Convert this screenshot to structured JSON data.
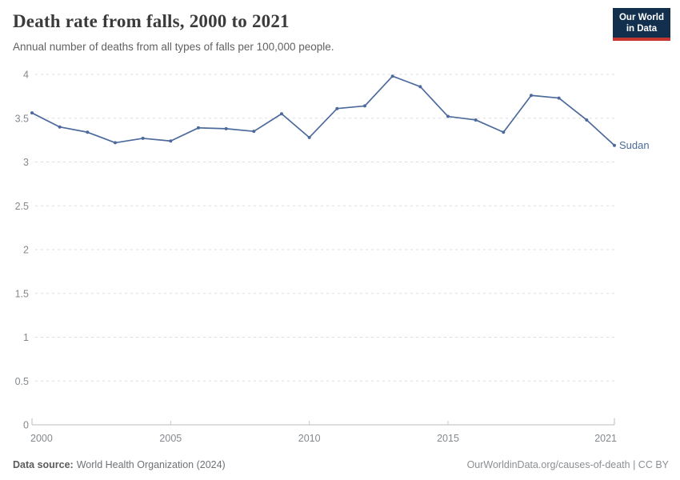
{
  "header": {
    "title": "Death rate from falls, 2000 to 2021",
    "subtitle": "Annual number of deaths from all types of falls per 100,000 people.",
    "logo": {
      "line1": "Our World",
      "line2": "in Data",
      "bg_color": "#12304e",
      "accent_color": "#c5372e"
    }
  },
  "chart_data": {
    "type": "line",
    "title": "Death rate from falls, 2000 to 2021",
    "xlabel": "",
    "ylabel": "",
    "x": [
      2000,
      2001,
      2002,
      2003,
      2004,
      2005,
      2006,
      2007,
      2008,
      2009,
      2010,
      2011,
      2012,
      2013,
      2014,
      2015,
      2016,
      2017,
      2018,
      2019,
      2020,
      2021
    ],
    "series": [
      {
        "name": "Sudan",
        "color": "#4C6A9C",
        "values": [
          3.56,
          3.4,
          3.34,
          3.22,
          3.27,
          3.24,
          3.39,
          3.38,
          3.35,
          3.55,
          3.28,
          3.61,
          3.64,
          3.98,
          3.86,
          3.52,
          3.48,
          3.34,
          3.76,
          3.73,
          3.48,
          3.19
        ]
      }
    ],
    "ylim": [
      0,
      4
    ],
    "yticks": [
      0,
      0.5,
      1,
      1.5,
      2,
      2.5,
      3,
      3.5,
      4
    ],
    "ytick_labels": [
      "0",
      "0.5",
      "1",
      "1.5",
      "2",
      "2.5",
      "3",
      "3.5",
      "4"
    ],
    "xticks": [
      2000,
      2005,
      2010,
      2015,
      2021
    ],
    "grid": "horizontal dashed",
    "legend": "series label at line end",
    "grid_color": "#dcdde0",
    "axis_color": "#b8bbbe",
    "tick_label_color": "#85898d"
  },
  "footer": {
    "source_label": "Data source:",
    "source_value": "World Health Organization (2024)",
    "credit": "OurWorldinData.org/causes-of-death | CC BY"
  }
}
